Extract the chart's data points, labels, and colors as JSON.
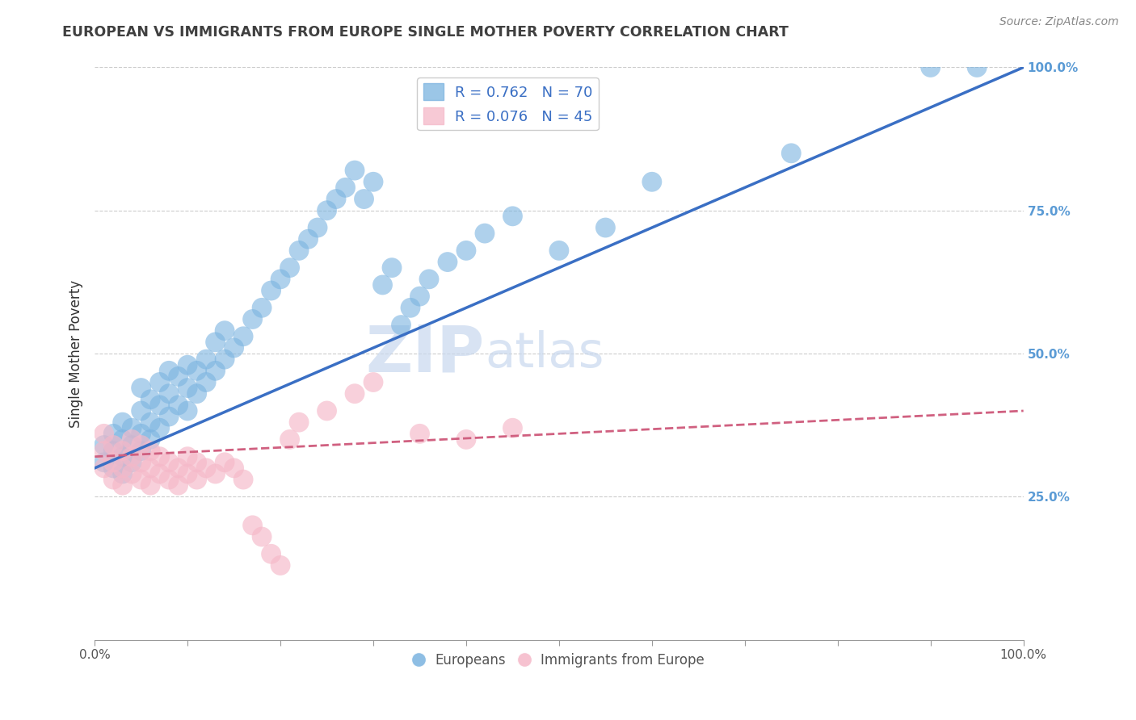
{
  "title": "EUROPEAN VS IMMIGRANTS FROM EUROPE SINGLE MOTHER POVERTY CORRELATION CHART",
  "source": "Source: ZipAtlas.com",
  "ylabel": "Single Mother Poverty",
  "watermark_zip": "ZIP",
  "watermark_atlas": "atlas",
  "legend_blue_r": "R = 0.762",
  "legend_blue_n": "N = 70",
  "legend_pink_r": "R = 0.076",
  "legend_pink_n": "N = 45",
  "legend_blue_label": "Europeans",
  "legend_pink_label": "Immigrants from Europe",
  "blue_color": "#7ab3e0",
  "pink_color": "#f5b8c8",
  "blue_line_color": "#3a6fc4",
  "pink_line_color": "#d06080",
  "background_color": "#ffffff",
  "grid_color": "#cccccc",
  "title_color": "#404040",
  "right_axis_color": "#5b9bd5",
  "blue_scatter_x": [
    0.01,
    0.01,
    0.02,
    0.02,
    0.02,
    0.03,
    0.03,
    0.03,
    0.03,
    0.04,
    0.04,
    0.04,
    0.05,
    0.05,
    0.05,
    0.05,
    0.06,
    0.06,
    0.06,
    0.07,
    0.07,
    0.07,
    0.08,
    0.08,
    0.08,
    0.09,
    0.09,
    0.1,
    0.1,
    0.1,
    0.11,
    0.11,
    0.12,
    0.12,
    0.13,
    0.13,
    0.14,
    0.14,
    0.15,
    0.16,
    0.17,
    0.18,
    0.19,
    0.2,
    0.21,
    0.22,
    0.23,
    0.24,
    0.25,
    0.26,
    0.27,
    0.28,
    0.29,
    0.3,
    0.31,
    0.32,
    0.33,
    0.34,
    0.35,
    0.36,
    0.38,
    0.4,
    0.42,
    0.45,
    0.5,
    0.55,
    0.6,
    0.75,
    0.9,
    0.95
  ],
  "blue_scatter_y": [
    0.31,
    0.34,
    0.3,
    0.33,
    0.36,
    0.29,
    0.32,
    0.35,
    0.38,
    0.31,
    0.34,
    0.37,
    0.33,
    0.36,
    0.4,
    0.44,
    0.35,
    0.38,
    0.42,
    0.37,
    0.41,
    0.45,
    0.39,
    0.43,
    0.47,
    0.41,
    0.46,
    0.4,
    0.44,
    0.48,
    0.43,
    0.47,
    0.45,
    0.49,
    0.47,
    0.52,
    0.49,
    0.54,
    0.51,
    0.53,
    0.56,
    0.58,
    0.61,
    0.63,
    0.65,
    0.68,
    0.7,
    0.72,
    0.75,
    0.77,
    0.79,
    0.82,
    0.77,
    0.8,
    0.62,
    0.65,
    0.55,
    0.58,
    0.6,
    0.63,
    0.66,
    0.68,
    0.71,
    0.74,
    0.68,
    0.72,
    0.8,
    0.85,
    1.0,
    1.0
  ],
  "pink_scatter_x": [
    0.01,
    0.01,
    0.01,
    0.02,
    0.02,
    0.02,
    0.03,
    0.03,
    0.03,
    0.04,
    0.04,
    0.04,
    0.05,
    0.05,
    0.05,
    0.06,
    0.06,
    0.06,
    0.07,
    0.07,
    0.08,
    0.08,
    0.09,
    0.09,
    0.1,
    0.1,
    0.11,
    0.11,
    0.12,
    0.13,
    0.14,
    0.15,
    0.16,
    0.17,
    0.18,
    0.19,
    0.2,
    0.21,
    0.22,
    0.25,
    0.28,
    0.3,
    0.35,
    0.4,
    0.45
  ],
  "pink_scatter_y": [
    0.3,
    0.33,
    0.36,
    0.28,
    0.31,
    0.34,
    0.27,
    0.3,
    0.33,
    0.29,
    0.32,
    0.35,
    0.28,
    0.31,
    0.34,
    0.27,
    0.3,
    0.33,
    0.29,
    0.32,
    0.28,
    0.31,
    0.27,
    0.3,
    0.29,
    0.32,
    0.28,
    0.31,
    0.3,
    0.29,
    0.31,
    0.3,
    0.28,
    0.2,
    0.18,
    0.15,
    0.13,
    0.35,
    0.38,
    0.4,
    0.43,
    0.45,
    0.36,
    0.35,
    0.37
  ],
  "blue_line_x0": 0.0,
  "blue_line_y0": 0.3,
  "blue_line_x1": 1.0,
  "blue_line_y1": 1.0,
  "pink_line_x0": 0.0,
  "pink_line_y0": 0.32,
  "pink_line_x1": 1.0,
  "pink_line_y1": 0.4,
  "xlim": [
    0.0,
    1.0
  ],
  "ylim": [
    0.0,
    1.0
  ],
  "xticks_major": [
    0.0,
    0.5,
    1.0
  ],
  "xtick_labels_show": {
    "0.0": "0.0%",
    "1.0": "100.0%"
  },
  "yticks_right": [
    0.25,
    0.5,
    0.75,
    1.0
  ],
  "ytick_labels_right": [
    "25.0%",
    "50.0%",
    "75.0%",
    "100.0%"
  ]
}
